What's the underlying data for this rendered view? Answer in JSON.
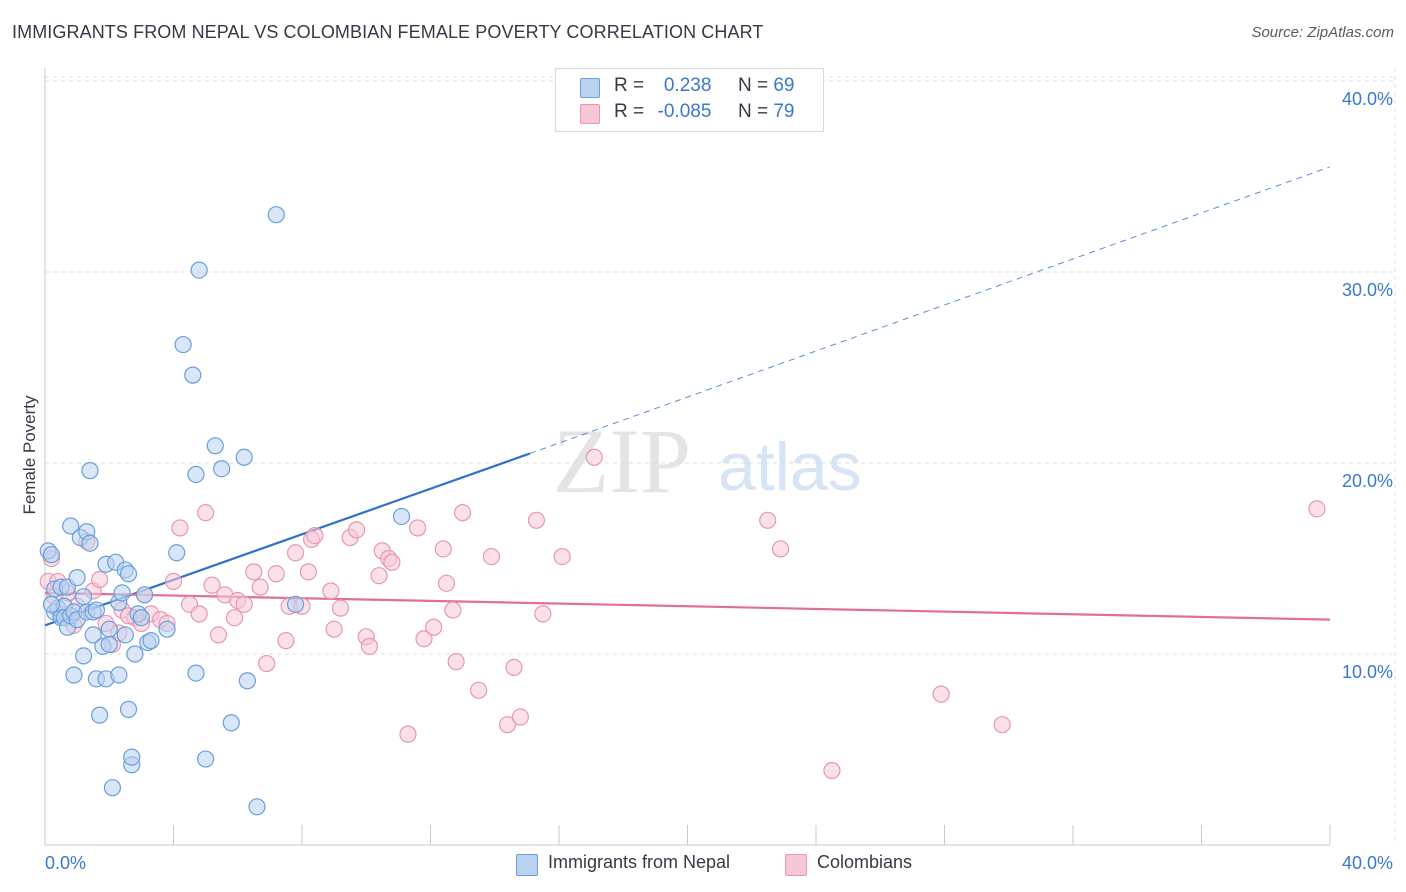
{
  "header": {
    "title": "IMMIGRANTS FROM NEPAL VS COLOMBIAN FEMALE POVERTY CORRELATION CHART",
    "source": "Source: ZipAtlas.com"
  },
  "legend": {
    "series1": {
      "r_label": "R =",
      "r_value": "0.238",
      "n_label": "N =",
      "n_value": "69"
    },
    "series2": {
      "r_label": "R =",
      "r_value": "-0.085",
      "n_label": "N =",
      "n_value": "79"
    }
  },
  "bottom_legend": {
    "series1": "Immigrants from Nepal",
    "series2": "Colombians"
  },
  "watermark": {
    "zip": "ZIP",
    "atlas": "atlas"
  },
  "colors": {
    "series1_fill": "#b8d2f0",
    "series1_stroke": "#6a9fdc",
    "series1_line": "#2f6fce",
    "series2_fill": "#f6c8d6",
    "series2_stroke": "#e996b2",
    "series2_line": "#e06f98",
    "tick_label": "#3a78d0",
    "grid": "#dddddd"
  },
  "chart_data": {
    "type": "scatter",
    "title": "IMMIGRANTS FROM NEPAL VS COLOMBIAN FEMALE POVERTY CORRELATION CHART",
    "xlabel": "",
    "ylabel": "Female Poverty",
    "xlim": [
      0,
      40
    ],
    "ylim": [
      0,
      40
    ],
    "x_tick_labels": [
      "0.0%",
      "40.0%"
    ],
    "y_ticks": [
      10,
      20,
      30,
      40
    ],
    "y_tick_labels": [
      "10.0%",
      "20.0%",
      "30.0%",
      "40.0%"
    ],
    "grid": true,
    "legend_position": "top-center",
    "series": [
      {
        "name": "Immigrants from Nepal",
        "r": 0.238,
        "n": 69,
        "trend": {
          "x0": 0,
          "y0": 11.5,
          "x1": 15.1,
          "y1": 20.5,
          "dash_to_x": 40,
          "dash_to_y": 35.5
        },
        "points": [
          [
            0.1,
            15.4
          ],
          [
            0.2,
            15.2
          ],
          [
            0.3,
            13.4
          ],
          [
            0.3,
            12.2
          ],
          [
            0.4,
            12.4
          ],
          [
            0.5,
            11.9
          ],
          [
            0.5,
            13.5
          ],
          [
            0.6,
            12.5
          ],
          [
            0.6,
            11.9
          ],
          [
            0.7,
            13.5
          ],
          [
            0.7,
            11.4
          ],
          [
            0.8,
            16.7
          ],
          [
            0.8,
            12.0
          ],
          [
            0.9,
            8.9
          ],
          [
            0.9,
            12.2
          ],
          [
            1.0,
            14.0
          ],
          [
            1.0,
            11.8
          ],
          [
            1.1,
            16.1
          ],
          [
            1.2,
            9.9
          ],
          [
            1.3,
            16.4
          ],
          [
            1.3,
            12.2
          ],
          [
            1.4,
            15.8
          ],
          [
            1.4,
            19.6
          ],
          [
            1.5,
            12.2
          ],
          [
            1.5,
            11.0
          ],
          [
            1.6,
            12.3
          ],
          [
            1.6,
            8.7
          ],
          [
            1.7,
            6.8
          ],
          [
            1.8,
            10.4
          ],
          [
            1.9,
            14.7
          ],
          [
            1.9,
            8.7
          ],
          [
            2.0,
            11.3
          ],
          [
            2.0,
            10.5
          ],
          [
            2.1,
            3.0
          ],
          [
            2.2,
            14.8
          ],
          [
            2.3,
            12.7
          ],
          [
            2.3,
            8.9
          ],
          [
            2.4,
            13.2
          ],
          [
            2.5,
            11.0
          ],
          [
            2.5,
            14.4
          ],
          [
            2.6,
            14.2
          ],
          [
            2.6,
            7.1
          ],
          [
            2.7,
            4.2
          ],
          [
            2.7,
            4.6
          ],
          [
            2.8,
            10.0
          ],
          [
            2.9,
            12.1
          ],
          [
            3.1,
            13.1
          ],
          [
            3.2,
            10.6
          ],
          [
            3.3,
            10.7
          ],
          [
            3.8,
            11.3
          ],
          [
            4.1,
            15.3
          ],
          [
            4.3,
            26.2
          ],
          [
            4.6,
            24.6
          ],
          [
            4.7,
            19.4
          ],
          [
            4.7,
            9.0
          ],
          [
            4.8,
            30.1
          ],
          [
            5.0,
            4.5
          ],
          [
            5.3,
            20.9
          ],
          [
            5.5,
            19.7
          ],
          [
            5.8,
            6.4
          ],
          [
            6.2,
            20.3
          ],
          [
            6.3,
            8.6
          ],
          [
            6.6,
            2.0
          ],
          [
            7.2,
            33.0
          ],
          [
            7.8,
            12.6
          ],
          [
            11.1,
            17.2
          ],
          [
            0.2,
            12.6
          ],
          [
            1.2,
            13.0
          ],
          [
            3.0,
            11.9
          ]
        ]
      },
      {
        "name": "Colombians",
        "r": -0.085,
        "n": 79,
        "trend": {
          "x0": 0,
          "y0": 13.2,
          "x1": 40,
          "y1": 11.8
        },
        "points": [
          [
            0.1,
            13.8
          ],
          [
            0.2,
            15.0
          ],
          [
            0.4,
            13.8
          ],
          [
            0.5,
            12.1
          ],
          [
            0.7,
            13.2
          ],
          [
            1.0,
            12.5
          ],
          [
            1.3,
            15.9
          ],
          [
            1.5,
            13.3
          ],
          [
            1.7,
            13.9
          ],
          [
            1.9,
            11.6
          ],
          [
            2.1,
            10.5
          ],
          [
            2.3,
            11.1
          ],
          [
            2.4,
            12.3
          ],
          [
            2.8,
            11.9
          ],
          [
            3.0,
            11.6
          ],
          [
            3.1,
            13.1
          ],
          [
            3.3,
            12.1
          ],
          [
            3.6,
            11.8
          ],
          [
            3.8,
            11.6
          ],
          [
            4.0,
            13.8
          ],
          [
            4.2,
            16.6
          ],
          [
            4.5,
            12.6
          ],
          [
            4.8,
            12.1
          ],
          [
            5.0,
            17.4
          ],
          [
            5.2,
            13.6
          ],
          [
            5.4,
            11.0
          ],
          [
            5.6,
            13.1
          ],
          [
            5.9,
            11.9
          ],
          [
            6.0,
            12.8
          ],
          [
            6.2,
            12.6
          ],
          [
            6.5,
            14.3
          ],
          [
            6.7,
            13.5
          ],
          [
            6.9,
            9.5
          ],
          [
            7.2,
            14.2
          ],
          [
            7.5,
            10.7
          ],
          [
            7.6,
            12.5
          ],
          [
            7.8,
            15.3
          ],
          [
            8.0,
            12.5
          ],
          [
            8.2,
            14.3
          ],
          [
            8.3,
            16.0
          ],
          [
            8.4,
            16.2
          ],
          [
            8.9,
            13.3
          ],
          [
            9.0,
            11.3
          ],
          [
            9.2,
            12.4
          ],
          [
            9.5,
            16.1
          ],
          [
            9.7,
            16.5
          ],
          [
            10.0,
            10.9
          ],
          [
            10.1,
            10.4
          ],
          [
            10.4,
            14.1
          ],
          [
            10.5,
            15.4
          ],
          [
            10.7,
            15.0
          ],
          [
            10.8,
            14.8
          ],
          [
            11.3,
            5.8
          ],
          [
            11.6,
            16.6
          ],
          [
            11.8,
            10.8
          ],
          [
            12.1,
            11.4
          ],
          [
            12.4,
            15.5
          ],
          [
            12.5,
            13.7
          ],
          [
            12.7,
            12.3
          ],
          [
            12.8,
            9.6
          ],
          [
            13.0,
            17.4
          ],
          [
            13.5,
            8.1
          ],
          [
            13.9,
            15.1
          ],
          [
            14.4,
            6.3
          ],
          [
            14.6,
            9.3
          ],
          [
            14.8,
            6.7
          ],
          [
            15.3,
            17.0
          ],
          [
            15.5,
            12.1
          ],
          [
            16.1,
            15.1
          ],
          [
            17.1,
            20.3
          ],
          [
            22.5,
            17.0
          ],
          [
            22.9,
            15.5
          ],
          [
            24.5,
            3.9
          ],
          [
            27.9,
            7.9
          ],
          [
            29.8,
            6.3
          ],
          [
            39.6,
            17.6
          ],
          [
            0.3,
            13.0
          ],
          [
            0.9,
            11.5
          ],
          [
            2.6,
            12.0
          ]
        ]
      }
    ]
  }
}
